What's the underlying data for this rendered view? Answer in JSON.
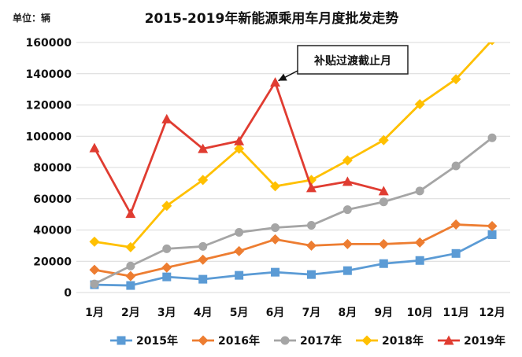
{
  "chart_data": {
    "type": "line",
    "title": "2015-2019年新能源乘用车月度批发走势",
    "unit_label": "单位：辆",
    "xlabel": "",
    "ylabel": "",
    "categories": [
      "1月",
      "2月",
      "3月",
      "4月",
      "5月",
      "6月",
      "7月",
      "8月",
      "9月",
      "10月",
      "11月",
      "12月"
    ],
    "ylim": [
      0,
      160000
    ],
    "yticks": [
      0,
      20000,
      40000,
      60000,
      80000,
      100000,
      120000,
      140000,
      160000
    ],
    "ytick_labels": [
      "0",
      "20000",
      "40000",
      "60000",
      "80000",
      "100000",
      "120000",
      "140000",
      "160000"
    ],
    "grid": true,
    "legend_position": "bottom",
    "series": [
      {
        "name": "2015年",
        "color": "#5b9bd5",
        "marker": "square",
        "values": [
          5000,
          4500,
          10000,
          8500,
          11000,
          13000,
          11500,
          14000,
          18500,
          20500,
          25000,
          37000
        ]
      },
      {
        "name": "2016年",
        "color": "#ed7d31",
        "marker": "diamond",
        "values": [
          14500,
          10500,
          16000,
          21000,
          26500,
          34000,
          30000,
          31000,
          31000,
          32000,
          43500,
          42500
        ]
      },
      {
        "name": "2017年",
        "color": "#a5a5a5",
        "marker": "circle",
        "values": [
          5500,
          17000,
          28000,
          29500,
          38500,
          41500,
          43000,
          53000,
          58000,
          65000,
          81000,
          99000
        ]
      },
      {
        "name": "2018年",
        "color": "#ffc000",
        "marker": "diamond",
        "values": [
          32500,
          29000,
          55500,
          72000,
          92000,
          68000,
          72000,
          84500,
          97500,
          120500,
          136500,
          161500
        ]
      },
      {
        "name": "2019年",
        "color": "#e03c31",
        "marker": "triangle",
        "values": [
          92500,
          50500,
          111000,
          92000,
          97000,
          134500,
          67000,
          71000,
          65000,
          null,
          null,
          null
        ]
      }
    ],
    "annotation": {
      "text": "补贴过渡截止月",
      "series": "2019年",
      "category": "6月"
    }
  }
}
